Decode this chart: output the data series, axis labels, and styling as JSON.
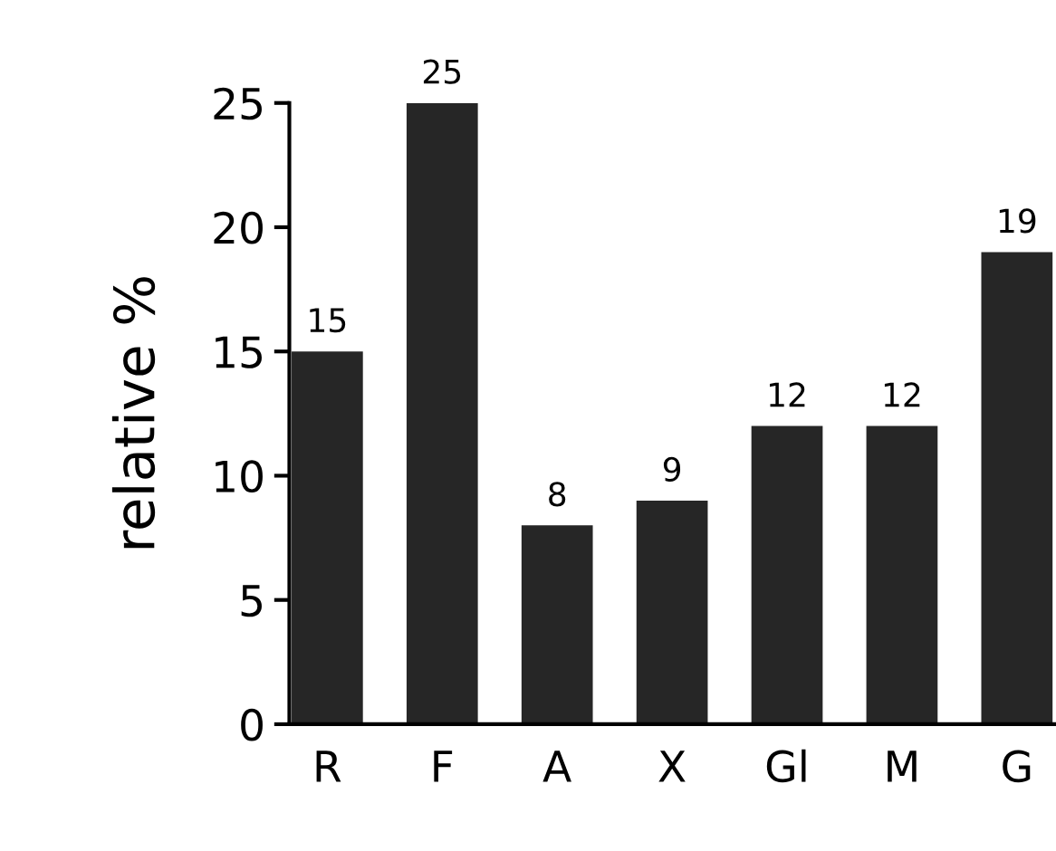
{
  "chart_data": {
    "type": "bar",
    "ylabel": "relative %",
    "categories": [
      "R",
      "F",
      "A",
      "X",
      "Gl",
      "M",
      "G"
    ],
    "values": [
      15,
      25,
      8,
      9,
      12,
      12,
      19
    ],
    "color": "#262626",
    "ylim": [
      0,
      25
    ],
    "yticks": [
      0,
      5,
      10,
      15,
      20,
      25
    ],
    "data_labels": true,
    "grid": false,
    "legend": false
  }
}
